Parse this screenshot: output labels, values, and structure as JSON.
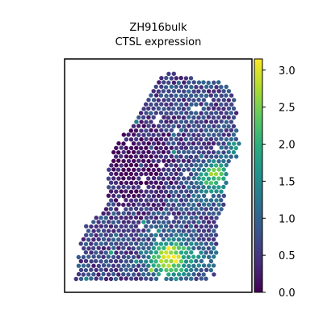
{
  "chart_data": {
    "type": "heatmap",
    "title": "ZH916bulk",
    "subtitle": "CTSL expression",
    "xlabel": "",
    "ylabel": "",
    "colormap": "viridis",
    "colorbar": {
      "min": 0.0,
      "max": 3.15,
      "ticks": [
        0.0,
        0.5,
        1.0,
        1.5,
        2.0,
        2.5,
        3.0
      ],
      "tick_labels": [
        "0.0",
        "0.5",
        "1.0",
        "1.5",
        "2.0",
        "2.5",
        "3.0"
      ]
    },
    "grid": false,
    "legend": "colorbar-right",
    "typical_range": [
      0.3,
      1.3
    ],
    "hotspots": [
      {
        "region": "lower-center",
        "approx_value": 3.0
      },
      {
        "region": "middle-right",
        "approx_value": 2.3
      },
      {
        "region": "right-edge",
        "approx_value": 2.0
      }
    ],
    "low_region": {
      "region": "upper-left",
      "approx_value": 0.1
    }
  }
}
